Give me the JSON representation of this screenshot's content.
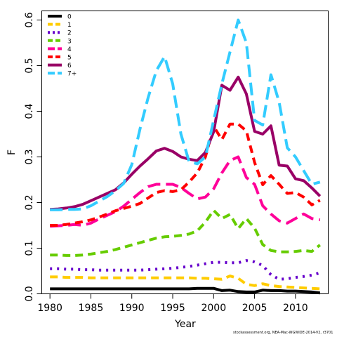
{
  "chart_data": {
    "type": "line",
    "xlabel": "Year",
    "ylabel": "F",
    "xlim": [
      1979,
      2014
    ],
    "ylim": [
      0,
      0.62
    ],
    "xticks": [
      1980,
      1985,
      1990,
      1995,
      2000,
      2005,
      2010
    ],
    "yticks": [
      0.0,
      0.1,
      0.2,
      0.3,
      0.4,
      0.5,
      0.6
    ],
    "ytick_labels": [
      "0.0",
      "0.1",
      "0.2",
      "0.3",
      "0.4",
      "0.5",
      "0.6"
    ],
    "grid": false,
    "legend_position": "top-left",
    "x": [
      1980,
      1981,
      1982,
      1983,
      1984,
      1985,
      1986,
      1987,
      1988,
      1989,
      1990,
      1991,
      1992,
      1993,
      1994,
      1995,
      1996,
      1997,
      1998,
      1999,
      2000,
      2001,
      2002,
      2003,
      2004,
      2005,
      2006,
      2007,
      2008,
      2009,
      2010,
      2011,
      2012,
      2013
    ],
    "series": [
      {
        "name": "0",
        "color": "#000000",
        "dash": "solid",
        "values": [
          0.011,
          0.011,
          0.011,
          0.011,
          0.011,
          0.011,
          0.011,
          0.011,
          0.011,
          0.011,
          0.011,
          0.011,
          0.011,
          0.011,
          0.011,
          0.011,
          0.011,
          0.011,
          0.012,
          0.012,
          0.012,
          0.007,
          0.008,
          0.005,
          0.004,
          0.004,
          0.008,
          0.007,
          0.007,
          0.006,
          0.006,
          0.005,
          0.004,
          0.002
        ]
      },
      {
        "name": "1",
        "color": "#FFCC00",
        "dash": "dashed",
        "values": [
          0.037,
          0.037,
          0.036,
          0.036,
          0.036,
          0.035,
          0.035,
          0.035,
          0.035,
          0.035,
          0.035,
          0.035,
          0.035,
          0.035,
          0.035,
          0.035,
          0.035,
          0.035,
          0.034,
          0.034,
          0.033,
          0.032,
          0.039,
          0.034,
          0.021,
          0.018,
          0.022,
          0.018,
          0.016,
          0.015,
          0.014,
          0.013,
          0.012,
          0.011
        ]
      },
      {
        "name": "2",
        "color": "#6600CC",
        "dash": "dotted",
        "values": [
          0.055,
          0.055,
          0.054,
          0.054,
          0.053,
          0.053,
          0.052,
          0.052,
          0.052,
          0.052,
          0.052,
          0.052,
          0.053,
          0.054,
          0.055,
          0.056,
          0.058,
          0.06,
          0.063,
          0.066,
          0.069,
          0.069,
          0.068,
          0.068,
          0.073,
          0.07,
          0.062,
          0.042,
          0.032,
          0.033,
          0.036,
          0.038,
          0.041,
          0.046
        ]
      },
      {
        "name": "3",
        "color": "#66CC00",
        "dash": "dashed",
        "values": [
          0.085,
          0.085,
          0.084,
          0.084,
          0.085,
          0.087,
          0.09,
          0.093,
          0.097,
          0.102,
          0.107,
          0.112,
          0.117,
          0.122,
          0.125,
          0.126,
          0.128,
          0.131,
          0.138,
          0.157,
          0.183,
          0.165,
          0.174,
          0.143,
          0.165,
          0.144,
          0.108,
          0.095,
          0.092,
          0.092,
          0.093,
          0.095,
          0.093,
          0.107
        ]
      },
      {
        "name": "4",
        "color": "#FF0099",
        "dash": "longdash",
        "values": [
          0.148,
          0.149,
          0.15,
          0.152,
          0.15,
          0.155,
          0.164,
          0.172,
          0.18,
          0.192,
          0.207,
          0.222,
          0.235,
          0.24,
          0.24,
          0.24,
          0.233,
          0.22,
          0.208,
          0.212,
          0.23,
          0.265,
          0.292,
          0.3,
          0.255,
          0.24,
          0.193,
          0.175,
          0.16,
          0.155,
          0.165,
          0.175,
          0.165,
          0.162
        ]
      },
      {
        "name": "5",
        "color": "#FF0000",
        "dash": "dashed",
        "values": [
          0.15,
          0.15,
          0.152,
          0.155,
          0.158,
          0.162,
          0.168,
          0.175,
          0.182,
          0.187,
          0.192,
          0.198,
          0.21,
          0.222,
          0.226,
          0.224,
          0.228,
          0.245,
          0.265,
          0.3,
          0.367,
          0.338,
          0.372,
          0.372,
          0.357,
          0.288,
          0.239,
          0.259,
          0.24,
          0.22,
          0.222,
          0.212,
          0.195,
          0.205
        ]
      },
      {
        "name": "6",
        "color": "#990066",
        "dash": "solid",
        "values": [
          0.185,
          0.186,
          0.188,
          0.191,
          0.196,
          0.204,
          0.212,
          0.22,
          0.228,
          0.243,
          0.262,
          0.28,
          0.296,
          0.313,
          0.319,
          0.312,
          0.3,
          0.295,
          0.292,
          0.31,
          0.355,
          0.457,
          0.446,
          0.475,
          0.438,
          0.356,
          0.35,
          0.368,
          0.282,
          0.28,
          0.252,
          0.248,
          0.232,
          0.214
        ]
      },
      {
        "name": "7+",
        "color": "#33CCFF",
        "dash": "longdash",
        "values": [
          0.184,
          0.184,
          0.185,
          0.185,
          0.186,
          0.193,
          0.203,
          0.213,
          0.226,
          0.242,
          0.283,
          0.361,
          0.43,
          0.489,
          0.52,
          0.46,
          0.35,
          0.29,
          0.285,
          0.3,
          0.38,
          0.46,
          0.53,
          0.6,
          0.55,
          0.38,
          0.37,
          0.48,
          0.42,
          0.32,
          0.3,
          0.27,
          0.24,
          0.245
        ]
      }
    ]
  },
  "caption": "stockassessment.org, NEA-Mac-WGWIDE-2014-V2, r3701"
}
